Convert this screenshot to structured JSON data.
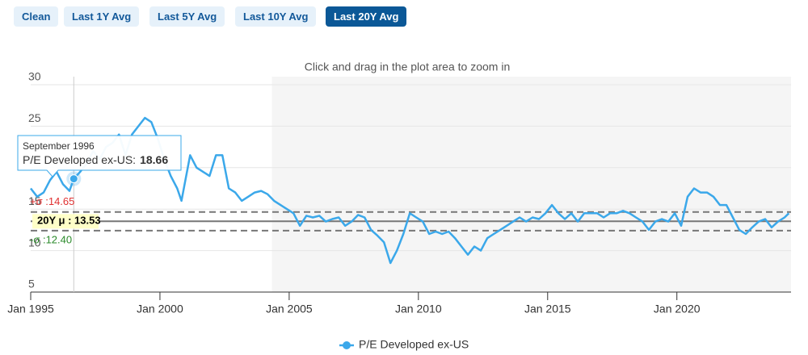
{
  "buttons": [
    {
      "label": "Clean"
    },
    {
      "label": "Last 1Y Avg"
    },
    {
      "label": "Last 5Y Avg"
    },
    {
      "label": "Last 10Y Avg"
    },
    {
      "label": "Last 20Y Avg"
    }
  ],
  "selected_button": "Last 20Y Avg",
  "chart_data": {
    "type": "line",
    "subtitle": "Click and drag in the plot area to zoom in",
    "x": [
      "1995-01",
      "1995-04",
      "1995-07",
      "1995-10",
      "1996-01",
      "1996-04",
      "1996-07",
      "1996-09",
      "1996-12",
      "1997-03",
      "1997-06",
      "1997-09",
      "1997-12",
      "1998-03",
      "1998-06",
      "1998-09",
      "1998-12",
      "1999-03",
      "1999-06",
      "1999-09",
      "1999-12",
      "2000-03",
      "2000-06",
      "2000-09",
      "2000-11",
      "2001-03",
      "2001-06",
      "2001-09",
      "2001-12",
      "2002-03",
      "2002-06",
      "2002-09",
      "2002-12",
      "2003-03",
      "2003-06",
      "2003-09",
      "2003-12",
      "2004-03",
      "2004-06",
      "2004-09",
      "2004-12",
      "2005-03",
      "2005-06",
      "2005-09",
      "2005-12",
      "2006-03",
      "2006-06",
      "2006-09",
      "2006-12",
      "2007-03",
      "2007-06",
      "2007-09",
      "2007-12",
      "2008-03",
      "2008-06",
      "2008-09",
      "2008-12",
      "2009-03",
      "2009-06",
      "2009-09",
      "2009-12",
      "2010-03",
      "2010-06",
      "2010-09",
      "2010-12",
      "2011-03",
      "2011-06",
      "2011-09",
      "2011-12",
      "2012-03",
      "2012-06",
      "2012-09",
      "2012-12",
      "2013-03",
      "2013-06",
      "2013-09",
      "2013-12",
      "2014-03",
      "2014-06",
      "2014-09",
      "2014-12",
      "2015-03",
      "2015-06",
      "2015-09",
      "2015-12",
      "2016-03",
      "2016-06",
      "2016-09",
      "2016-12",
      "2017-03",
      "2017-06",
      "2017-09",
      "2017-12",
      "2018-03",
      "2018-06",
      "2018-09",
      "2018-12",
      "2019-03",
      "2019-06",
      "2019-09",
      "2019-12",
      "2020-03",
      "2020-06",
      "2020-09",
      "2020-12",
      "2021-03",
      "2021-06",
      "2021-09",
      "2021-12",
      "2022-03",
      "2022-06",
      "2022-09",
      "2022-12",
      "2023-03",
      "2023-06",
      "2023-09",
      "2023-12",
      "2024-03",
      "2024-05"
    ],
    "series": [
      {
        "name": "P/E Developed ex-US",
        "color": "#3ba8ea",
        "values": [
          17.5,
          16.5,
          17.0,
          18.5,
          19.5,
          18.0,
          17.2,
          18.66,
          19.5,
          20.5,
          22.0,
          21.0,
          22.5,
          23.0,
          24.0,
          21.5,
          24.0,
          25.0,
          26.0,
          25.5,
          23.5,
          21.0,
          19.0,
          17.5,
          16.0,
          21.5,
          20.0,
          19.5,
          19.0,
          21.5,
          21.5,
          17.5,
          17.0,
          16.0,
          16.5,
          17.0,
          17.2,
          16.8,
          16.0,
          15.5,
          15.0,
          14.5,
          13.0,
          14.2,
          14.0,
          14.2,
          13.5,
          13.8,
          14.0,
          13.0,
          13.5,
          14.3,
          14.0,
          12.5,
          11.8,
          11.0,
          8.5,
          10.0,
          12.0,
          14.5,
          14.0,
          13.5,
          12.0,
          12.3,
          12.0,
          12.3,
          11.5,
          10.5,
          9.5,
          10.5,
          10.0,
          11.5,
          12.0,
          12.5,
          13.0,
          13.5,
          14.0,
          13.5,
          14.0,
          13.8,
          14.5,
          15.5,
          14.5,
          13.8,
          14.5,
          13.5,
          14.5,
          14.5,
          14.5,
          14.0,
          14.5,
          14.5,
          14.8,
          14.5,
          14.0,
          13.5,
          12.5,
          13.5,
          13.8,
          13.5,
          14.5,
          13.0,
          16.5,
          17.5,
          17.0,
          17.0,
          16.5,
          15.5,
          15.5,
          14.0,
          12.5,
          12.0,
          12.8,
          13.5,
          13.8,
          12.8,
          13.5,
          14.0,
          14.5
        ]
      }
    ],
    "xlim": [
      "1995-01",
      "2024-06"
    ],
    "xticks": [
      {
        "value": "1995-01",
        "label": "Jan 1995"
      },
      {
        "value": "2000-01",
        "label": "Jan 2000"
      },
      {
        "value": "2005-01",
        "label": "Jan 2005"
      },
      {
        "value": "2010-01",
        "label": "Jan 2010"
      },
      {
        "value": "2015-01",
        "label": "Jan 2015"
      },
      {
        "value": "2020-01",
        "label": "Jan 2020"
      }
    ],
    "ylim": [
      5,
      30
    ],
    "yticks": [
      5,
      10,
      15,
      20,
      25,
      30
    ],
    "grid": true,
    "plot_band": [
      "2004-05",
      "2024-06"
    ],
    "reference_lines": [
      {
        "value": 14.65,
        "label": "+σ :14.65",
        "color": "#e03030",
        "dashed": true
      },
      {
        "value": 13.53,
        "label": "20Y μ : 13.53",
        "color": "#000000",
        "dashed": false
      },
      {
        "value": 12.4,
        "label": "-σ :12.40",
        "color": "#2a8a2a",
        "dashed": true
      }
    ],
    "tooltip": {
      "x": "1996-09",
      "title": "September 1996",
      "label": "P/E Developed ex-US:",
      "value": 18.66
    },
    "legend": "bottom"
  }
}
